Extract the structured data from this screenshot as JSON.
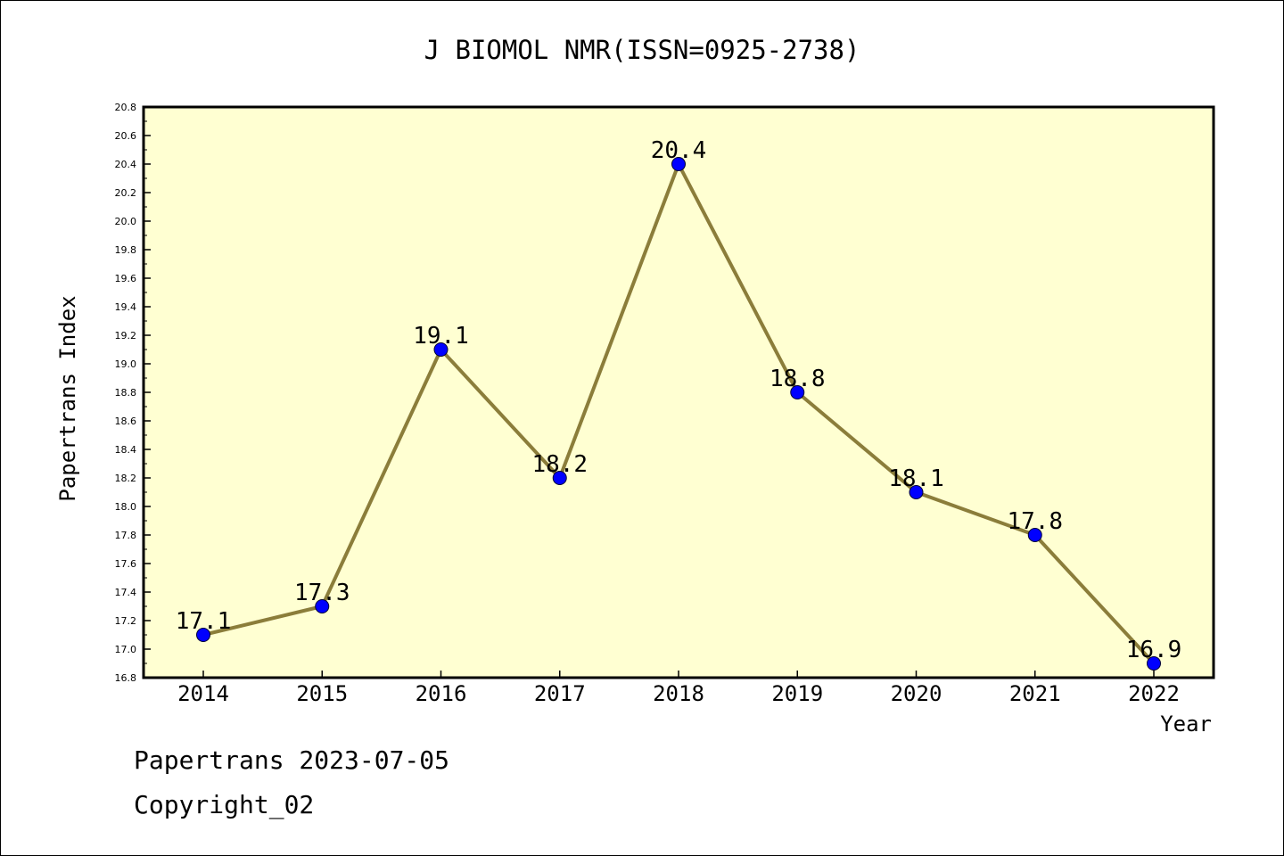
{
  "chart_data": {
    "type": "line",
    "title": "J BIOMOL NMR(ISSN=0925-2738)",
    "xlabel": "Year",
    "ylabel": "Papertrans Index",
    "categories": [
      "2014",
      "2015",
      "2016",
      "2017",
      "2018",
      "2019",
      "2020",
      "2021",
      "2022"
    ],
    "values": [
      17.1,
      17.3,
      19.1,
      18.2,
      20.4,
      18.8,
      18.1,
      17.8,
      16.9
    ],
    "data_labels": [
      "17.1",
      "17.3",
      "19.1",
      "18.2",
      "20.4",
      "18.8",
      "18.1",
      "17.8",
      "16.9"
    ],
    "ylim": [
      16.8,
      20.8
    ],
    "ytick_step": 0.2,
    "yticks": [
      "16.8",
      "17.0",
      "17.2",
      "17.4",
      "17.6",
      "17.8",
      "18.0",
      "18.2",
      "18.4",
      "18.6",
      "18.8",
      "19.0",
      "19.2",
      "19.4",
      "19.6",
      "19.8",
      "20.0",
      "20.2",
      "20.4",
      "20.6",
      "20.8"
    ],
    "grid": false,
    "legend": "none",
    "colors": {
      "plot_background": "#ffffd2",
      "line": "#8b7d3a",
      "marker": "#0000ff",
      "marker_edge": "#000033"
    }
  },
  "footer": {
    "line1": "Papertrans 2023-07-05",
    "line2": "Copyright_02"
  }
}
